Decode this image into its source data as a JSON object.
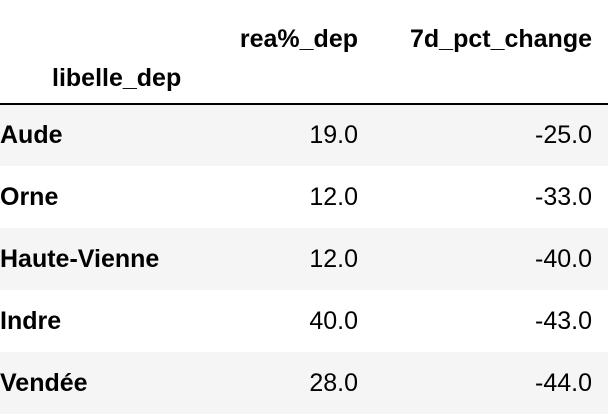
{
  "table": {
    "columns": {
      "rea": "rea%_dep",
      "pct": "7d_pct_change"
    },
    "index_name": "libelle_dep",
    "rows": [
      {
        "label": "Aude",
        "rea": "19.0",
        "pct": "-25.0"
      },
      {
        "label": "Orne",
        "rea": "12.0",
        "pct": "-33.0"
      },
      {
        "label": "Haute-Vienne",
        "rea": "12.0",
        "pct": "-40.0"
      },
      {
        "label": "Indre",
        "rea": "40.0",
        "pct": "-43.0"
      },
      {
        "label": "Vendée",
        "rea": "28.0",
        "pct": "-44.0"
      }
    ]
  },
  "colors": {
    "text": "#000000",
    "striped_row": "#f5f5f5",
    "header_rule": "#000000",
    "background": "#ffffff"
  }
}
